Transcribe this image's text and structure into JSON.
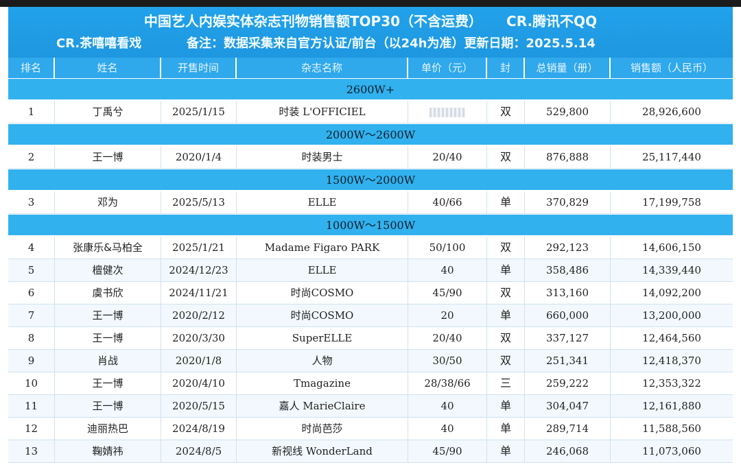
{
  "banner": {
    "title": "中国艺人内娱实体杂志刊物销售额TOP30（不含运费）",
    "credit1": "CR.腾讯不QQ",
    "credit2": "CR.茶嘻嘻看戏",
    "note": "备注：数据采集来自官方认证/前台（以24h为准）更新日期：2025.5.14"
  },
  "columns": [
    "排名",
    "姓名",
    "开售时间",
    "杂志名称",
    "单价（元）",
    "封",
    "总销量（册）",
    "销售额（人民币）"
  ],
  "groups": [
    {
      "label": "2600W+",
      "rows": [
        {
          "rank": "1",
          "name": "丁禹兮",
          "date": "2025/1/15",
          "magazine": "时装 L'OFFICIEL",
          "price": "",
          "cover": "双",
          "sales": "529,800",
          "revenue": "28,926,600"
        }
      ]
    },
    {
      "label": "2000W～2600W",
      "rows": [
        {
          "rank": "2",
          "name": "王一博",
          "date": "2020/1/4",
          "magazine": "时装男士",
          "price": "20/40",
          "cover": "双",
          "sales": "876,888",
          "revenue": "25,117,440"
        }
      ]
    },
    {
      "label": "1500W～2000W",
      "rows": [
        {
          "rank": "3",
          "name": "邓为",
          "date": "2025/5/13",
          "magazine": "ELLE",
          "price": "40/66",
          "cover": "单",
          "sales": "370,829",
          "revenue": "17,199,758"
        }
      ]
    },
    {
      "label": "1000W～1500W",
      "rows": [
        {
          "rank": "4",
          "name": "张康乐&马柏全",
          "date": "2025/1/21",
          "magazine": "Madame Figaro PARK",
          "price": "50/100",
          "cover": "双",
          "sales": "292,123",
          "revenue": "14,606,150"
        },
        {
          "rank": "5",
          "name": "檀健次",
          "date": "2024/12/23",
          "magazine": "ELLE",
          "price": "40",
          "cover": "单",
          "sales": "358,486",
          "revenue": "14,339,440"
        },
        {
          "rank": "6",
          "name": "虞书欣",
          "date": "2024/11/21",
          "magazine": "时尚COSMO",
          "price": "45/90",
          "cover": "双",
          "sales": "313,160",
          "revenue": "14,092,200"
        },
        {
          "rank": "7",
          "name": "王一博",
          "date": "2020/2/12",
          "magazine": "时尚COSMO",
          "price": "20",
          "cover": "单",
          "sales": "660,000",
          "revenue": "13,200,000"
        },
        {
          "rank": "8",
          "name": "王一博",
          "date": "2020/3/30",
          "magazine": "SuperELLE",
          "price": "20/40",
          "cover": "双",
          "sales": "337,127",
          "revenue": "12,464,560"
        },
        {
          "rank": "9",
          "name": "肖战",
          "date": "2020/1/8",
          "magazine": "人物",
          "price": "30/50",
          "cover": "双",
          "sales": "251,341",
          "revenue": "12,418,370"
        },
        {
          "rank": "10",
          "name": "王一博",
          "date": "2020/4/10",
          "magazine": "Tmagazine",
          "price": "28/38/66",
          "cover": "三",
          "sales": "259,222",
          "revenue": "12,353,322"
        },
        {
          "rank": "11",
          "name": "王一博",
          "date": "2020/5/15",
          "magazine": "嘉人 MarieClaire",
          "price": "40",
          "cover": "单",
          "sales": "304,047",
          "revenue": "12,161,880"
        },
        {
          "rank": "12",
          "name": "迪丽热巴",
          "date": "2024/8/19",
          "magazine": "时尚芭莎",
          "price": "40",
          "cover": "单",
          "sales": "289,714",
          "revenue": "11,588,560"
        },
        {
          "rank": "13",
          "name": "鞠婧祎",
          "date": "2024/8/5",
          "magazine": "新视线 WonderLand",
          "price": "45/90",
          "cover": "单",
          "sales": "246,068",
          "revenue": "11,073,060"
        }
      ]
    }
  ]
}
